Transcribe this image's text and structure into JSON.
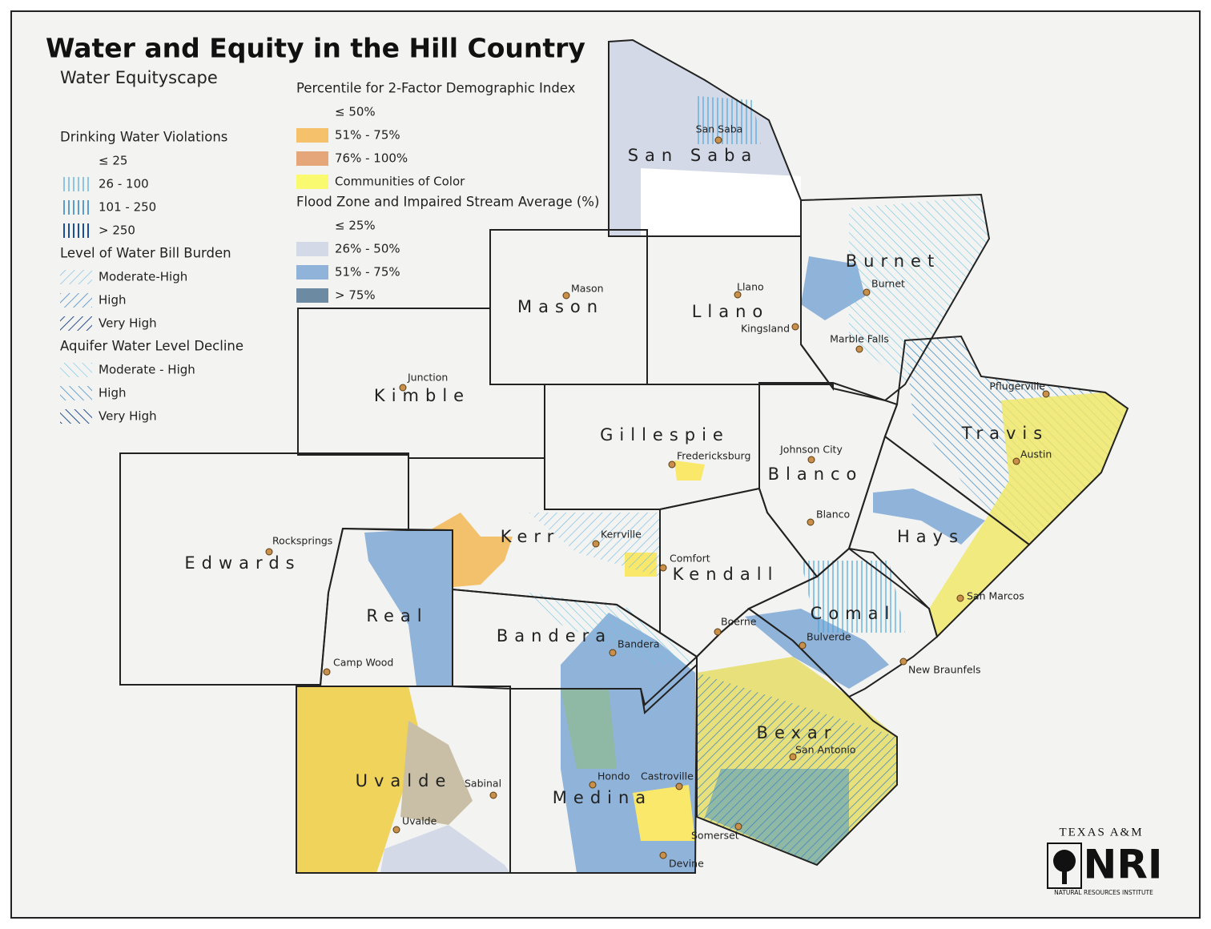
{
  "header": {
    "title": "Water and Equity in the Hill Country",
    "subtitle": "Water Equityscape"
  },
  "legend": {
    "groups": [
      {
        "title": "Drinking Water Violations",
        "items": [
          "≤ 25",
          "26 - 100",
          "101 - 250",
          "> 250"
        ]
      },
      {
        "title": "Level of Water Bill Burden",
        "items": [
          "Moderate-High",
          "High",
          "Very High"
        ]
      },
      {
        "title": "Aquifer Water Level Decline",
        "items": [
          "Moderate - High",
          "High",
          "Very High"
        ]
      },
      {
        "title": "Percentile for 2-Factor Demographic Index",
        "items": [
          "≤ 50%",
          "51% - 75%",
          "76% - 100%",
          "Communities of Color"
        ]
      },
      {
        "title": "Flood Zone and Impaired Stream Average (%)",
        "items": [
          "≤ 25%",
          "26% - 50%",
          "51% - 75%",
          "> 75%"
        ]
      }
    ]
  },
  "counties": [
    "San Saba",
    "Burnet",
    "Mason",
    "Llano",
    "Kimble",
    "Gillespie",
    "Blanco",
    "Travis",
    "Hays",
    "Kerr",
    "Edwards",
    "Kendall",
    "Real",
    "Comal",
    "Bandera",
    "Bexar",
    "Uvalde",
    "Medina"
  ],
  "cities": [
    "San Saba",
    "Mason",
    "Llano",
    "Kingsland",
    "Burnet",
    "Marble Falls",
    "Junction",
    "Pflugerville",
    "Austin",
    "Johnson City",
    "Fredericksburg",
    "Blanco",
    "Rocksprings",
    "Kerrville",
    "Comfort",
    "San Marcos",
    "Camp Wood",
    "Boerne",
    "Bulverde",
    "Bandera",
    "New Braunfels",
    "San Antonio",
    "Sabinal",
    "Uvalde",
    "Hondo",
    "Castroville",
    "Somerset",
    "Devine"
  ],
  "logo": {
    "top": "TEXAS A&M",
    "mark": "NRI",
    "bottom": "NATURAL RESOURCES INSTITUTE"
  }
}
